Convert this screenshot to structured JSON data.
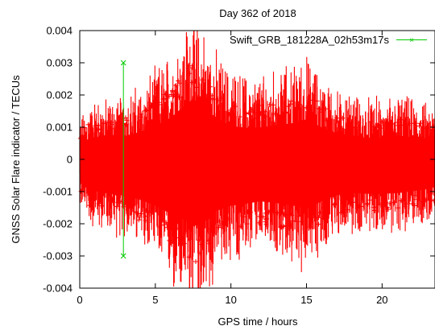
{
  "chart_data": {
    "type": "scatter",
    "title": "Day 362 of 2018",
    "xlabel": "GPS time / hours",
    "ylabel": "GNSS Solar Flare indicator / TECUs",
    "xlim": [
      0,
      23.5
    ],
    "ylim": [
      -0.004,
      0.004
    ],
    "x_ticks": [
      0,
      5,
      10,
      15,
      20
    ],
    "y_ticks": [
      -0.004,
      -0.003,
      -0.002,
      -0.001,
      0,
      0.001,
      0.002,
      0.003,
      0.004
    ],
    "x_tick_labels": [
      "0",
      "5",
      "10",
      "15",
      "20"
    ],
    "y_tick_labels": [
      "-0.004",
      "-0.003",
      "-0.002",
      "-0.001",
      "0",
      "0.001",
      "0.002",
      "0.003",
      "0.004"
    ],
    "grid": false,
    "legend_position": "top-right",
    "series": [
      {
        "color": "#ff0000",
        "marker": "plus",
        "description": "dense red band of solar-flare indicator samples",
        "envelope": {
          "x": [
            0,
            0.5,
            1,
            2,
            3,
            4,
            5,
            6,
            7,
            7.5,
            8,
            8.5,
            9,
            10,
            11,
            12,
            13,
            14,
            15,
            16,
            17,
            18,
            19,
            20,
            21,
            22,
            23,
            23.5
          ],
          "upper": [
            0.0008,
            0.0011,
            0.0012,
            0.0012,
            0.0013,
            0.0015,
            0.0018,
            0.0022,
            0.0028,
            0.0031,
            0.0028,
            0.0025,
            0.0022,
            0.0018,
            0.0017,
            0.0017,
            0.0018,
            0.0019,
            0.0021,
            0.0017,
            0.0014,
            0.0013,
            0.0012,
            0.0012,
            0.0013,
            0.0012,
            0.0011,
            0.001
          ],
          "lower": [
            -0.001,
            -0.0014,
            -0.0015,
            -0.0016,
            -0.0017,
            -0.0019,
            -0.0022,
            -0.0026,
            -0.003,
            -0.0033,
            -0.0031,
            -0.0028,
            -0.0025,
            -0.0022,
            -0.0021,
            -0.002,
            -0.0021,
            -0.0022,
            -0.0024,
            -0.002,
            -0.0017,
            -0.0016,
            -0.0016,
            -0.0016,
            -0.0016,
            -0.0015,
            -0.0014,
            -0.0013
          ]
        }
      },
      {
        "name": "Swift_GRB_181228A_02h53m17s",
        "color": "#00cc00",
        "marker": "x",
        "type": "vertical_line",
        "x": [
          2.888,
          2.888
        ],
        "y": [
          0.003,
          -0.003
        ]
      }
    ]
  }
}
